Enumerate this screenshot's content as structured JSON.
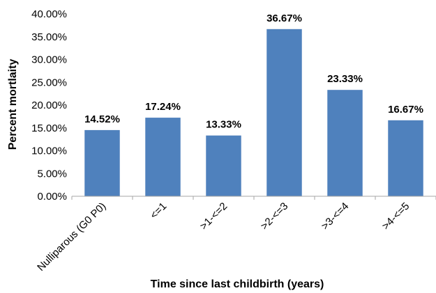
{
  "chart_data": {
    "type": "bar",
    "title": "",
    "xlabel": "Time since last childbirth (years)",
    "ylabel": "Percent mortlaity",
    "categories": [
      "Nulliparous (G0 P0)",
      "<=1",
      ">1-<=2",
      ">2-<=3",
      ">3-<=4",
      ">4-<=5"
    ],
    "values": [
      14.52,
      17.24,
      13.33,
      36.67,
      23.33,
      16.67
    ],
    "data_labels": [
      "14.52%",
      "17.24%",
      "13.33%",
      "36.67%",
      "23.33%",
      "16.67%"
    ],
    "ylim": [
      0,
      40
    ],
    "yticks": [
      0,
      5,
      10,
      15,
      20,
      25,
      30,
      35,
      40
    ],
    "ytick_labels": [
      "0.00%",
      "5.00%",
      "10.00%",
      "15.00%",
      "20.00%",
      "25.00%",
      "30.00%",
      "35.00%",
      "40.00%"
    ],
    "grid": false,
    "legend": "none",
    "bar_color": "#4f81bd",
    "axis_color": "#a6a6a6"
  }
}
